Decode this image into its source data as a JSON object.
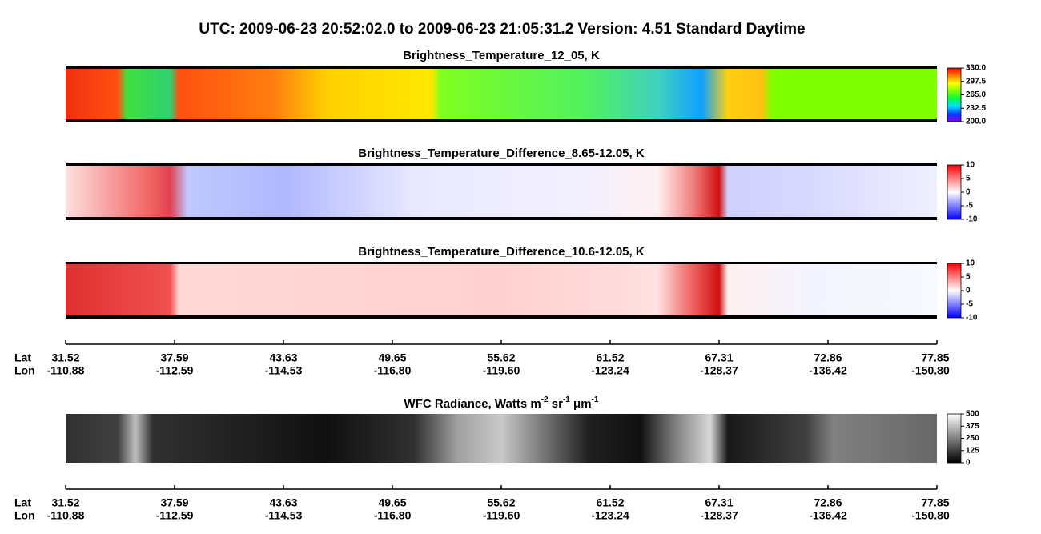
{
  "title": "UTC:  2009-06-23   20:52:02.0  to  2009-06-23   21:05:31.2    Version: 4.51  Standard Daytime",
  "chart_data": [
    {
      "type": "heatmap",
      "title": "Brightness_Temperature_12_05, K",
      "colorbar": {
        "lim": [
          200,
          330
        ],
        "ticks": [
          {
            "value": 330,
            "label": "330.0"
          },
          {
            "value": 297.5,
            "label": "297.5"
          },
          {
            "value": 265,
            "label": "265.0"
          },
          {
            "value": 232.5,
            "label": "232.5"
          },
          {
            "value": 200,
            "label": "200.0"
          }
        ],
        "colors": [
          "#8000ff",
          "#0040ff",
          "#00e0ff",
          "#00ff40",
          "#80ff00",
          "#ffff00",
          "#ff8000",
          "#ff0000"
        ]
      }
    },
    {
      "type": "heatmap",
      "title": "Brightness_Temperature_Difference_8.65-12.05, K",
      "colorbar": {
        "lim": [
          -10,
          10
        ],
        "ticks": [
          10,
          5,
          0,
          -5,
          -10
        ],
        "colors": [
          "#0000ff",
          "#ffffff",
          "#ff0000"
        ]
      }
    },
    {
      "type": "heatmap",
      "title": "Brightness_Temperature_Difference_10.6-12.05, K",
      "colorbar": {
        "lim": [
          -10,
          10
        ],
        "ticks": [
          10,
          5,
          0,
          -5,
          -10
        ],
        "colors": [
          "#0000ff",
          "#ffffff",
          "#ff0000"
        ]
      }
    },
    {
      "type": "heatmap",
      "title_parts": [
        "WFC Radiance, Watts m",
        "-2",
        " sr",
        "-1",
        " μm",
        "-1"
      ],
      "colorbar": {
        "lim": [
          0,
          500
        ],
        "ticks": [
          500,
          375,
          250,
          125,
          0
        ],
        "colors": [
          "#000000",
          "#ffffff"
        ]
      }
    }
  ],
  "axes": [
    {
      "row_labels": [
        "Lat",
        "Lon"
      ],
      "lat": [
        "31.52",
        "37.59",
        "43.63",
        "49.65",
        "55.62",
        "61.52",
        "67.31",
        "72.86",
        "77.85"
      ],
      "lon": [
        "-110.88",
        "-112.59",
        "-114.53",
        "-116.80",
        "-119.60",
        "-123.24",
        "-128.37",
        "-136.42",
        "-150.80"
      ]
    },
    {
      "row_labels": [
        "Lat",
        "Lon"
      ],
      "lat": [
        "31.52",
        "37.59",
        "43.63",
        "49.65",
        "55.62",
        "61.52",
        "67.31",
        "72.86",
        "77.85"
      ],
      "lon": [
        "-110.88",
        "-112.59",
        "-114.53",
        "-116.80",
        "-119.60",
        "-123.24",
        "-128.37",
        "-136.42",
        "-150.80"
      ]
    }
  ]
}
